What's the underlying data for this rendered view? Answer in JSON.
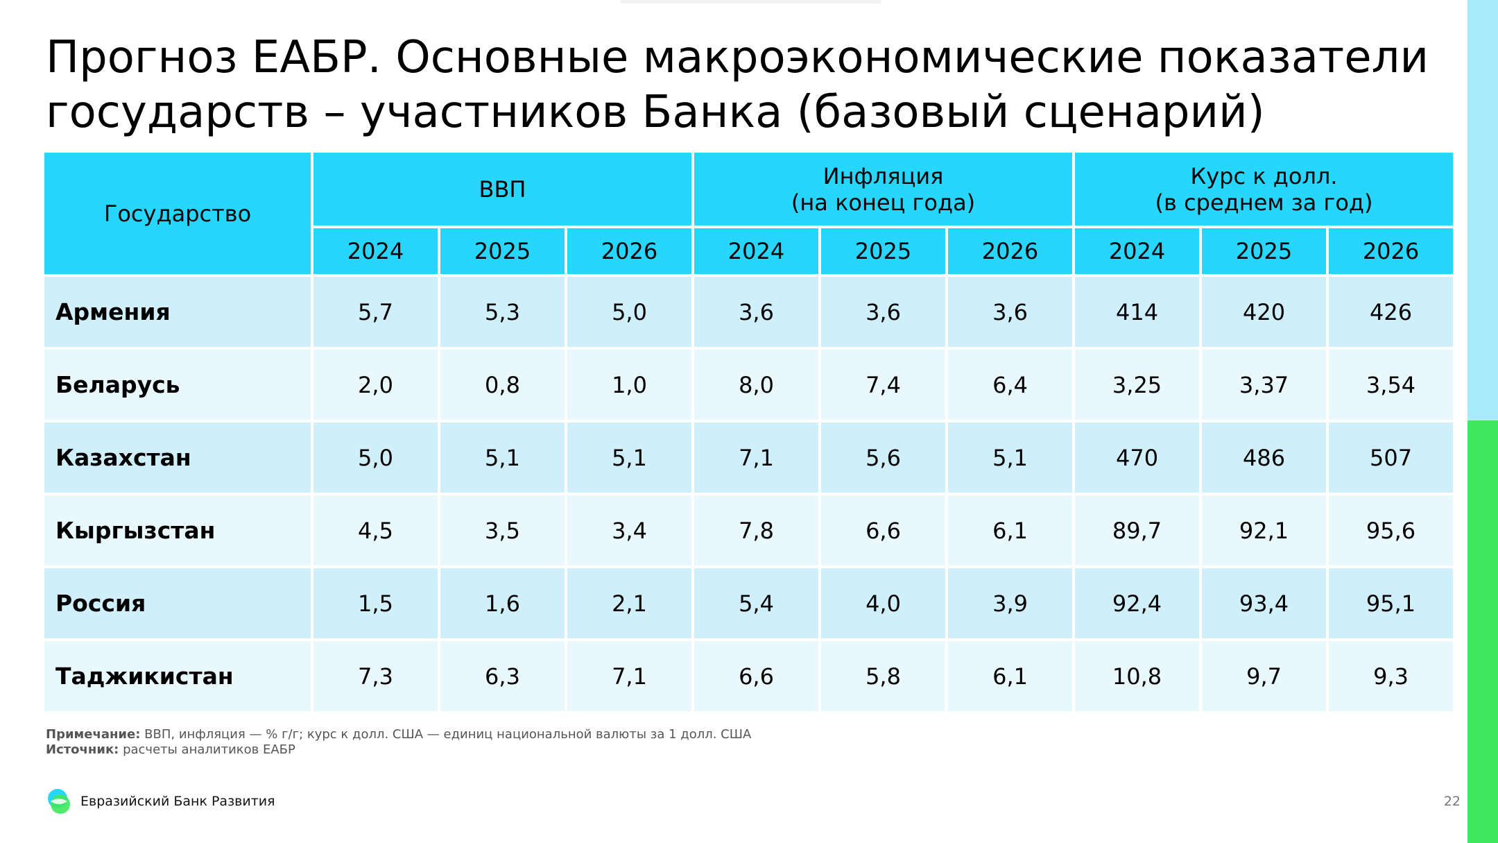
{
  "slide": {
    "title_line1": "Прогноз ЕАБР. Основные макроэкономические показатели",
    "title_line2": "государств – участников Банка (базовый сценарий)",
    "page_number": "22"
  },
  "table": {
    "country_header": "Государство",
    "groups": [
      {
        "line1": "ВВП",
        "line2": ""
      },
      {
        "line1": "Инфляция",
        "line2": "(на конец года)"
      },
      {
        "line1": "Курс к долл.",
        "line2": "(в среднем за год)"
      }
    ],
    "years": [
      "2024",
      "2025",
      "2026",
      "2024",
      "2025",
      "2026",
      "2024",
      "2025",
      "2026"
    ],
    "rows": [
      {
        "country": "Армения",
        "values": [
          "5,7",
          "5,3",
          "5,0",
          "3,6",
          "3,6",
          "3,6",
          "414",
          "420",
          "426"
        ]
      },
      {
        "country": "Беларусь",
        "values": [
          "2,0",
          "0,8",
          "1,0",
          "8,0",
          "7,4",
          "6,4",
          "3,25",
          "3,37",
          "3,54"
        ]
      },
      {
        "country": "Казахстан",
        "values": [
          "5,0",
          "5,1",
          "5,1",
          "7,1",
          "5,6",
          "5,1",
          "470",
          "486",
          "507"
        ]
      },
      {
        "country": "Кыргызстан",
        "values": [
          "4,5",
          "3,5",
          "3,4",
          "7,8",
          "6,6",
          "6,1",
          "89,7",
          "92,1",
          "95,6"
        ]
      },
      {
        "country": "Россия",
        "values": [
          "1,5",
          "1,6",
          "2,1",
          "5,4",
          "4,0",
          "3,9",
          "92,4",
          "93,4",
          "95,1"
        ]
      },
      {
        "country": "Таджикистан",
        "values": [
          "7,3",
          "6,3",
          "7,1",
          "6,6",
          "5,8",
          "6,1",
          "10,8",
          "9,7",
          "9,3"
        ]
      }
    ]
  },
  "footnotes": {
    "note_label": "Примечание:",
    "note_text": " ВВП, инфляция — % г/г; курс к долл. США — единиц национальной валюты за 1 долл. США",
    "source_label": "Источник:",
    "source_text": " расчеты аналитиков ЕАБР"
  },
  "brand": {
    "name": "Евразийский Банк Развития",
    "logo_icon": "eadb-logo-icon",
    "colors": {
      "header_cyan": "#27d6fd",
      "row_dark": "#cfeffb",
      "row_light": "#e9f8fd",
      "stripe_light_blue": "#a8ecfb",
      "stripe_green": "#3fe85c"
    }
  }
}
